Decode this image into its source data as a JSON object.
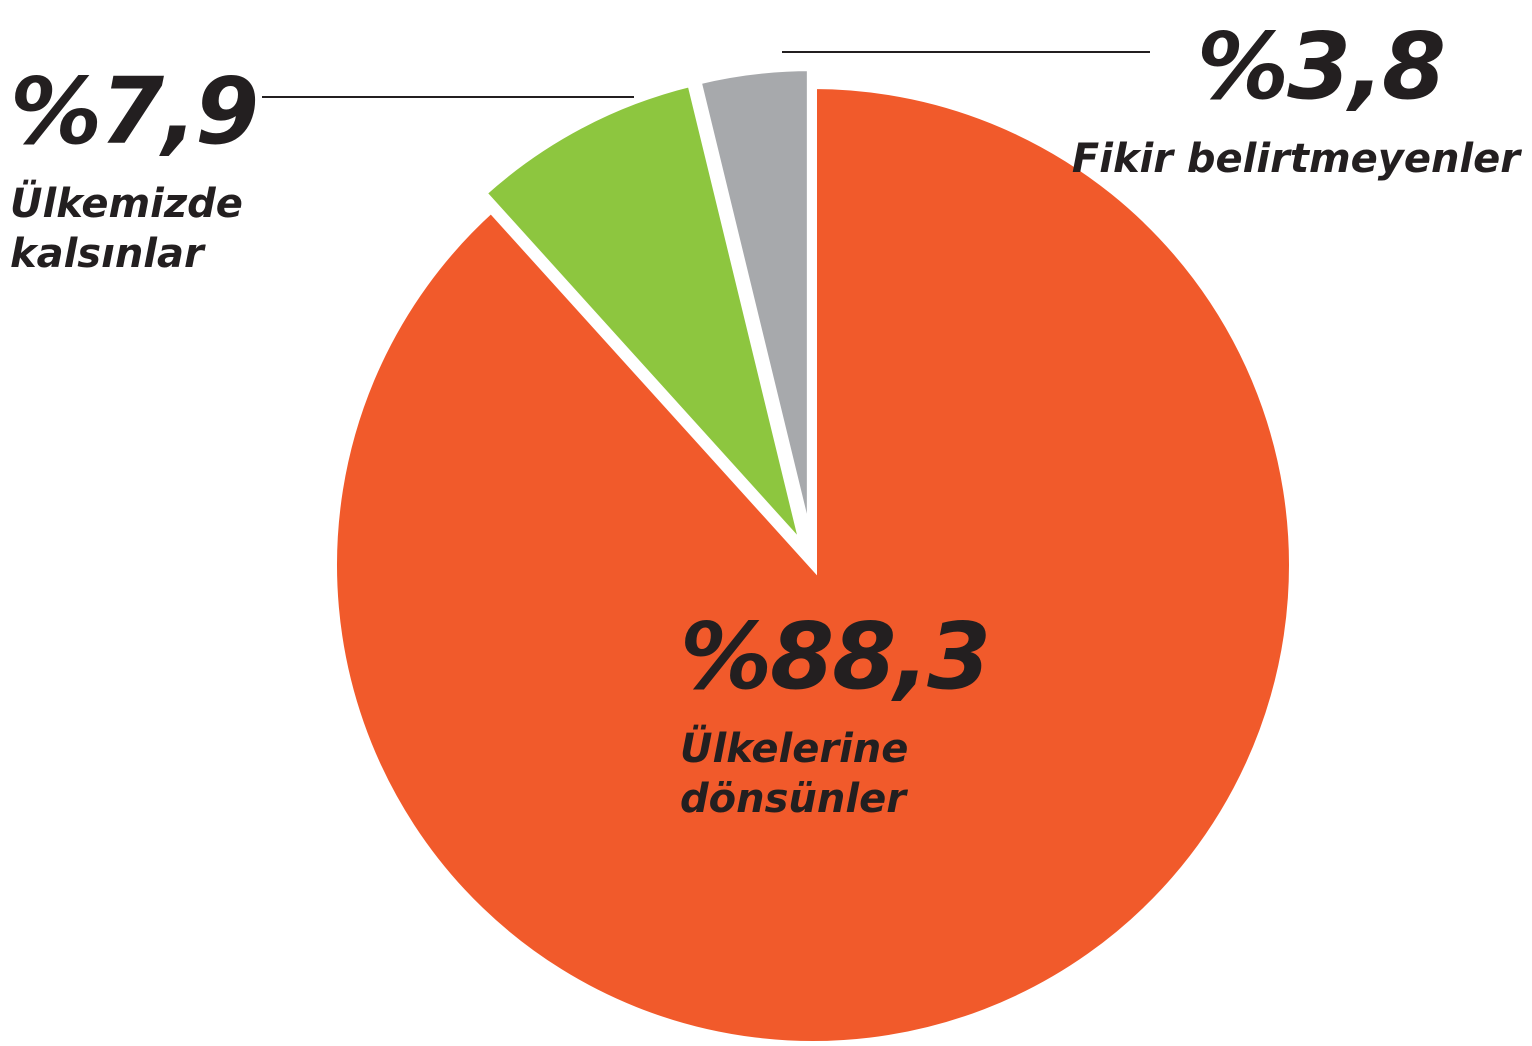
{
  "chart_data": {
    "type": "pie",
    "categories": [
      "Ülkelerine\ndönsünler",
      "Ülkemizde\nkalsınlar",
      "Fikir belirtmeyenler"
    ],
    "values": [
      88.3,
      7.9,
      3.8
    ],
    "value_labels": [
      "%88,3",
      "%7,9",
      "%3,8"
    ],
    "colors": [
      "#f15a2b",
      "#8dc63f",
      "#a7a9ac"
    ]
  }
}
